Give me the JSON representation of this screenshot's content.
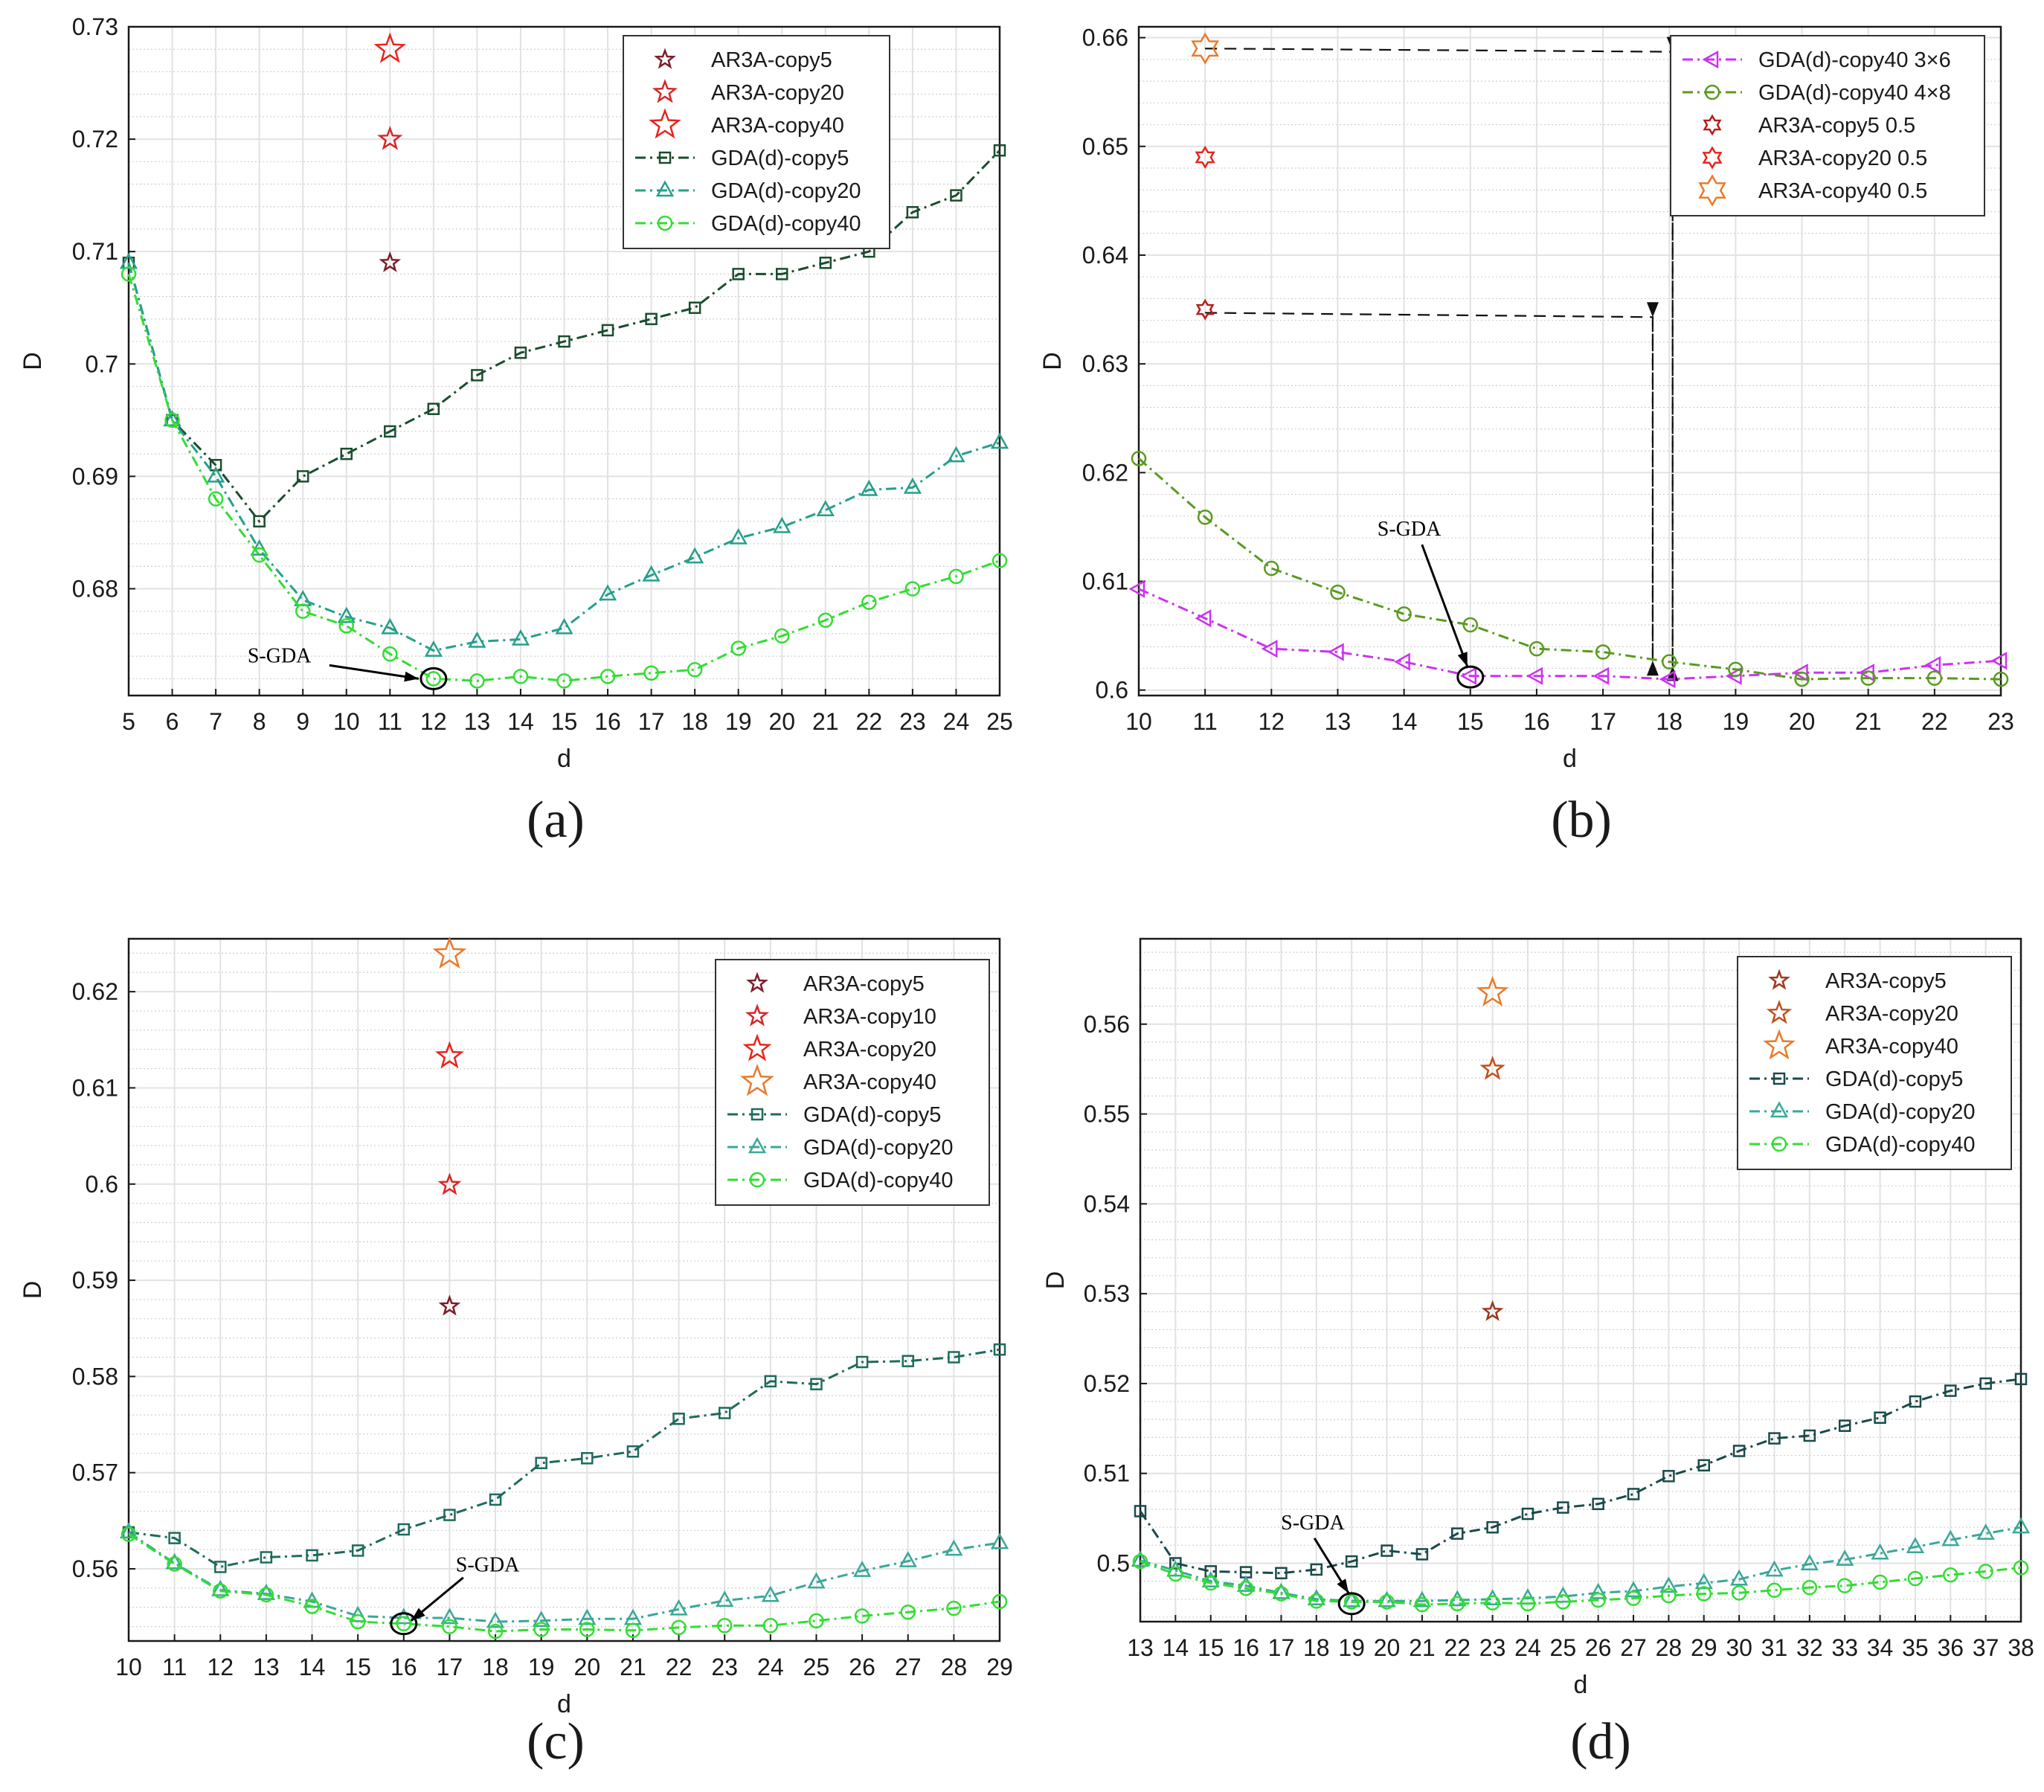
{
  "chart_data": [
    {
      "panel": "a",
      "type": "line",
      "caption": "(a)",
      "xlabel": "d",
      "ylabel": "D",
      "xlim": [
        5,
        25
      ],
      "ylim": [
        0.6705,
        0.73
      ],
      "xticks": [
        "5",
        "6",
        "7",
        "8",
        "9",
        "10",
        "11",
        "12",
        "13",
        "14",
        "15",
        "16",
        "17",
        "18",
        "19",
        "20",
        "21",
        "22",
        "23",
        "24",
        "25"
      ],
      "yticks": [
        "0.68",
        "0.69",
        "0.7",
        "0.71",
        "0.72",
        "0.73"
      ],
      "ytick_values": [
        0.68,
        0.69,
        0.7,
        0.71,
        0.72,
        0.73
      ],
      "annotation": {
        "text": "S-GDA",
        "x": 12,
        "y": 0.672
      },
      "legend_position": "top-right",
      "series": [
        {
          "name": "AR3A-copy5",
          "kind": "star",
          "color": "#7b1e2a",
          "size": 1.0,
          "points": [
            [
              11,
              0.709
            ]
          ]
        },
        {
          "name": "AR3A-copy20",
          "kind": "star",
          "color": "#d62728",
          "size": 1.2,
          "points": [
            [
              11,
              0.72
            ]
          ]
        },
        {
          "name": "AR3A-copy40",
          "kind": "star",
          "color": "#e8241c",
          "size": 1.6,
          "points": [
            [
              11,
              0.728
            ]
          ]
        },
        {
          "name": "GDA(d)-copy5",
          "kind": "square",
          "color": "#1a4d2e",
          "x": [
            5,
            6,
            7,
            8,
            9,
            10,
            11,
            12,
            13,
            14,
            15,
            16,
            17,
            18,
            19,
            20,
            21,
            22,
            23,
            24,
            25
          ],
          "y": [
            0.709,
            0.695,
            0.691,
            0.686,
            0.69,
            0.692,
            0.694,
            0.696,
            0.699,
            0.701,
            0.702,
            0.703,
            0.704,
            0.705,
            0.708,
            0.708,
            0.709,
            0.71,
            0.7135,
            0.715,
            0.719
          ]
        },
        {
          "name": "GDA(d)-copy20",
          "kind": "triangle",
          "color": "#25a08a",
          "x": [
            5,
            6,
            7,
            8,
            9,
            10,
            11,
            12,
            13,
            14,
            15,
            16,
            17,
            18,
            19,
            20,
            21,
            22,
            23,
            24,
            25
          ],
          "y": [
            0.709,
            0.695,
            0.69,
            0.6835,
            0.679,
            0.6775,
            0.6765,
            0.6745,
            0.6753,
            0.6755,
            0.6765,
            0.6795,
            0.6812,
            0.6828,
            0.6845,
            0.6855,
            0.687,
            0.6888,
            0.689,
            0.6918,
            0.693
          ]
        },
        {
          "name": "GDA(d)-copy40",
          "kind": "circle",
          "color": "#33dd33",
          "x": [
            5,
            6,
            7,
            8,
            9,
            10,
            11,
            12,
            13,
            14,
            15,
            16,
            17,
            18,
            19,
            20,
            21,
            22,
            23,
            24,
            25
          ],
          "y": [
            0.708,
            0.695,
            0.688,
            0.683,
            0.678,
            0.6767,
            0.6742,
            0.672,
            0.6718,
            0.6722,
            0.6718,
            0.6722,
            0.6725,
            0.6728,
            0.6747,
            0.6758,
            0.6772,
            0.6788,
            0.68,
            0.6811,
            0.6825
          ]
        }
      ]
    },
    {
      "panel": "b",
      "type": "line",
      "caption": "(b)",
      "xlabel": "d",
      "ylabel": "D",
      "xlim": [
        10,
        23
      ],
      "ylim": [
        0.5995,
        0.661
      ],
      "xticks": [
        "10",
        "11",
        "12",
        "13",
        "14",
        "15",
        "16",
        "17",
        "18",
        "19",
        "20",
        "21",
        "22",
        "23"
      ],
      "yticks": [
        "0.6",
        "0.61",
        "0.62",
        "0.63",
        "0.64",
        "0.65",
        "0.66"
      ],
      "ytick_values": [
        0.6,
        0.61,
        0.62,
        0.63,
        0.64,
        0.65,
        0.66
      ],
      "annotation": {
        "text": "S-GDA",
        "x": 15,
        "y": 0.6012
      },
      "legend_position": "top-right",
      "series": [
        {
          "name": "GDA(d)-copy40 3×6",
          "kind": "lefttri",
          "color": "#cc33ee",
          "x": [
            10,
            11,
            12,
            13,
            14,
            15,
            16,
            17,
            18,
            19,
            20,
            21,
            22,
            23
          ],
          "y": [
            0.6093,
            0.6066,
            0.6038,
            0.6035,
            0.6026,
            0.6013,
            0.6013,
            0.6013,
            0.601,
            0.6013,
            0.6016,
            0.6016,
            0.6023,
            0.6027
          ]
        },
        {
          "name": "GDA(d)-copy40 4×8",
          "kind": "circle",
          "color": "#5a9a1f",
          "x": [
            10,
            11,
            12,
            13,
            14,
            15,
            16,
            17,
            18,
            19,
            20,
            21,
            22,
            23
          ],
          "y": [
            0.6213,
            0.6159,
            0.6112,
            0.609,
            0.607,
            0.606,
            0.6038,
            0.6035,
            0.6026,
            0.6019,
            0.601,
            0.6011,
            0.6011,
            0.601
          ]
        },
        {
          "name": "AR3A-copy5 0.5",
          "kind": "hexstar",
          "color": "#b0201c",
          "size": 1.0,
          "points": [
            [
              11,
              0.635
            ]
          ]
        },
        {
          "name": "AR3A-copy20 0.5",
          "kind": "hexstar",
          "color": "#e8241c",
          "size": 1.1,
          "points": [
            [
              11,
              0.649
            ]
          ]
        },
        {
          "name": "AR3A-copy40 0.5",
          "kind": "hexstar",
          "color": "#e87a2a",
          "size": 1.6,
          "points": [
            [
              11,
              0.659
            ]
          ]
        }
      ],
      "arrows": [
        {
          "from": [
            11,
            0.6347
          ],
          "corner": [
            17.75,
            0.6343
          ],
          "to": [
            17.75,
            0.6027
          ]
        },
        {
          "from": [
            11,
            0.659
          ],
          "corner": [
            18.05,
            0.6587
          ],
          "to": [
            18.05,
            0.6022
          ]
        },
        {
          "from": [
            17.75,
            0.6027
          ],
          "corner": [
            17.75,
            0.6027
          ],
          "to": [
            17.75,
            0.6343
          ]
        },
        {
          "from": [
            18.05,
            0.6022
          ],
          "corner": [
            18.05,
            0.6022
          ],
          "to": [
            18.05,
            0.6587
          ]
        }
      ]
    },
    {
      "panel": "c",
      "type": "line",
      "caption": "(c)",
      "xlabel": "d",
      "ylabel": "D",
      "xlim": [
        10,
        29
      ],
      "ylim": [
        0.5525,
        0.6255
      ],
      "xticks": [
        "10",
        "11",
        "12",
        "13",
        "14",
        "15",
        "16",
        "17",
        "18",
        "19",
        "20",
        "21",
        "22",
        "23",
        "24",
        "25",
        "26",
        "27",
        "28",
        "29"
      ],
      "yticks": [
        "0.56",
        "0.57",
        "0.58",
        "0.59",
        "0.6",
        "0.61",
        "0.62"
      ],
      "ytick_values": [
        0.56,
        0.57,
        0.58,
        0.59,
        0.6,
        0.61,
        0.62
      ],
      "annotation": {
        "text": "S-GDA",
        "x": 16,
        "y": 0.5543
      },
      "legend_position": "top-right",
      "series": [
        {
          "name": "AR3A-copy5",
          "kind": "star",
          "color": "#7b1e2a",
          "size": 1.0,
          "points": [
            [
              17,
              0.5873
            ]
          ]
        },
        {
          "name": "AR3A-copy10",
          "kind": "star",
          "color": "#d62728",
          "size": 1.1,
          "points": [
            [
              17,
              0.5999
            ]
          ]
        },
        {
          "name": "AR3A-copy20",
          "kind": "star",
          "color": "#e8241c",
          "size": 1.4,
          "points": [
            [
              17,
              0.6133
            ]
          ]
        },
        {
          "name": "AR3A-copy40",
          "kind": "star",
          "color": "#e87a2a",
          "size": 1.7,
          "points": [
            [
              17,
              0.6239
            ]
          ]
        },
        {
          "name": "GDA(d)-copy5",
          "kind": "square",
          "color": "#1e6b5c",
          "x": [
            10,
            11,
            12,
            13,
            14,
            15,
            16,
            17,
            18,
            19,
            20,
            21,
            22,
            23,
            24,
            25,
            26,
            27,
            28,
            29
          ],
          "y": [
            0.5638,
            0.5632,
            0.5602,
            0.5612,
            0.5614,
            0.5619,
            0.5641,
            0.5656,
            0.5672,
            0.571,
            0.5715,
            0.5722,
            0.5756,
            0.5762,
            0.5795,
            0.5792,
            0.5815,
            0.5816,
            0.582,
            0.5828
          ]
        },
        {
          "name": "GDA(d)-copy20",
          "kind": "triangle",
          "color": "#3aa898",
          "x": [
            10,
            11,
            12,
            13,
            14,
            15,
            16,
            17,
            18,
            19,
            20,
            21,
            22,
            23,
            24,
            25,
            26,
            27,
            28,
            29
          ],
          "y": [
            0.5638,
            0.5606,
            0.5578,
            0.5574,
            0.5566,
            0.5551,
            0.5549,
            0.5549,
            0.5545,
            0.5546,
            0.5548,
            0.5548,
            0.5558,
            0.5567,
            0.5572,
            0.5586,
            0.5598,
            0.5608,
            0.562,
            0.5627
          ]
        },
        {
          "name": "GDA(d)-copy40",
          "kind": "circle",
          "color": "#33dd33",
          "x": [
            10,
            11,
            12,
            13,
            14,
            15,
            16,
            17,
            18,
            19,
            20,
            21,
            22,
            23,
            24,
            25,
            26,
            27,
            28,
            29
          ],
          "y": [
            0.5636,
            0.5605,
            0.5577,
            0.5573,
            0.5561,
            0.5545,
            0.5543,
            0.554,
            0.5535,
            0.5537,
            0.5537,
            0.5536,
            0.5539,
            0.5541,
            0.5541,
            0.5546,
            0.5551,
            0.5555,
            0.5559,
            0.5566
          ]
        }
      ]
    },
    {
      "panel": "d",
      "type": "line",
      "caption": "(d)",
      "xlabel": "d",
      "ylabel": "D",
      "xlim": [
        13,
        38
      ],
      "ylim": [
        0.4935,
        0.5695
      ],
      "xticks": [
        "13",
        "14",
        "15",
        "16",
        "17",
        "18",
        "19",
        "20",
        "21",
        "22",
        "23",
        "24",
        "25",
        "26",
        "27",
        "28",
        "29",
        "30",
        "31",
        "32",
        "33",
        "34",
        "35",
        "36",
        "37",
        "38"
      ],
      "yticks": [
        "0.5",
        "0.51",
        "0.52",
        "0.53",
        "0.54",
        "0.55",
        "0.56"
      ],
      "ytick_values": [
        0.5,
        0.51,
        0.52,
        0.53,
        0.54,
        0.55,
        0.56
      ],
      "annotation": {
        "text": "S-GDA",
        "x": 19,
        "y": 0.4955
      },
      "legend_position": "top-right",
      "series": [
        {
          "name": "AR3A-copy5",
          "kind": "star",
          "color": "#9a3a1e",
          "size": 1.0,
          "points": [
            [
              23,
              0.528
            ]
          ]
        },
        {
          "name": "AR3A-copy20",
          "kind": "star",
          "color": "#c0501e",
          "size": 1.2,
          "points": [
            [
              23,
              0.555
            ]
          ]
        },
        {
          "name": "AR3A-copy40",
          "kind": "star",
          "color": "#e87a2a",
          "size": 1.6,
          "points": [
            [
              23,
              0.5635
            ]
          ]
        },
        {
          "name": "GDA(d)-copy5",
          "kind": "square",
          "color": "#1a4a4a",
          "x": [
            13,
            14,
            15,
            16,
            17,
            18,
            19,
            20,
            21,
            22,
            23,
            24,
            25,
            26,
            27,
            28,
            29,
            30,
            31,
            32,
            33,
            34,
            35,
            36,
            37,
            38
          ],
          "y": [
            0.5058,
            0.5,
            0.4991,
            0.499,
            0.4989,
            0.4993,
            0.5002,
            0.5014,
            0.501,
            0.5033,
            0.504,
            0.5055,
            0.5062,
            0.5066,
            0.5077,
            0.5097,
            0.5109,
            0.5125,
            0.5139,
            0.5142,
            0.5153,
            0.5162,
            0.518,
            0.5192,
            0.52,
            0.5205
          ]
        },
        {
          "name": "GDA(d)-copy20",
          "kind": "triangle",
          "color": "#3aa898",
          "x": [
            13,
            14,
            15,
            16,
            17,
            18,
            19,
            20,
            21,
            22,
            23,
            24,
            25,
            26,
            27,
            28,
            29,
            30,
            31,
            32,
            33,
            34,
            35,
            36,
            37,
            38
          ],
          "y": [
            0.5003,
            0.4992,
            0.498,
            0.4975,
            0.4967,
            0.496,
            0.4958,
            0.4958,
            0.4958,
            0.4959,
            0.496,
            0.4961,
            0.4963,
            0.4967,
            0.4969,
            0.4974,
            0.4978,
            0.4982,
            0.4992,
            0.4999,
            0.5004,
            0.5011,
            0.5018,
            0.5026,
            0.5033,
            0.504
          ]
        },
        {
          "name": "GDA(d)-copy40",
          "kind": "circle",
          "color": "#33dd33",
          "x": [
            13,
            14,
            15,
            16,
            17,
            18,
            19,
            20,
            21,
            22,
            23,
            24,
            25,
            26,
            27,
            28,
            29,
            30,
            31,
            32,
            33,
            34,
            35,
            36,
            37,
            38
          ],
          "y": [
            0.5002,
            0.4988,
            0.4978,
            0.4972,
            0.4966,
            0.4958,
            0.4957,
            0.4957,
            0.4954,
            0.4955,
            0.4956,
            0.4955,
            0.4957,
            0.4959,
            0.4961,
            0.4964,
            0.4966,
            0.4967,
            0.497,
            0.4973,
            0.4975,
            0.4979,
            0.4983,
            0.4987,
            0.4991,
            0.4995
          ]
        }
      ]
    }
  ]
}
